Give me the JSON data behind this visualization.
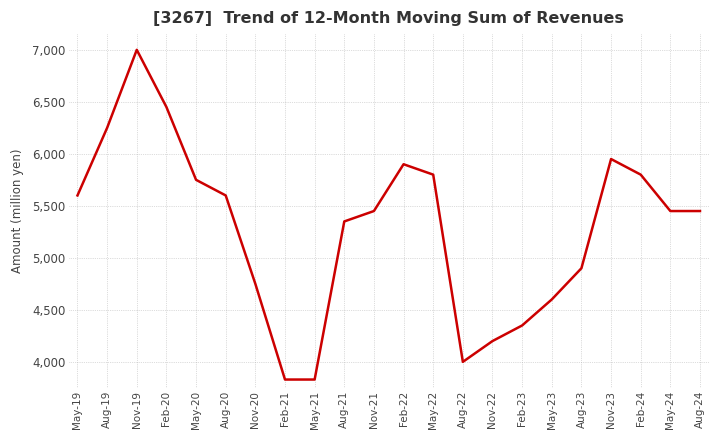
{
  "title": "[3267]  Trend of 12-Month Moving Sum of Revenues",
  "ylabel": "Amount (million yen)",
  "line_color": "#cc0000",
  "background_color": "#ffffff",
  "grid_color": "#aaaaaa",
  "ylim": [
    3750,
    7150
  ],
  "yticks": [
    4000,
    4500,
    5000,
    5500,
    6000,
    6500,
    7000
  ],
  "x_labels": [
    "May-19",
    "Aug-19",
    "Nov-19",
    "Feb-20",
    "May-20",
    "Aug-20",
    "Nov-20",
    "Feb-21",
    "May-21",
    "Aug-21",
    "Nov-21",
    "Feb-22",
    "May-22",
    "Aug-22",
    "Nov-22",
    "Feb-23",
    "May-23",
    "Aug-23",
    "Nov-23",
    "Feb-24",
    "May-24",
    "Aug-24"
  ],
  "values": [
    5600,
    6250,
    7000,
    6450,
    5750,
    5600,
    4750,
    3830,
    3830,
    5350,
    5450,
    5900,
    5800,
    4000,
    4200,
    4350,
    4600,
    4900,
    5950,
    5800,
    5450,
    5450
  ]
}
